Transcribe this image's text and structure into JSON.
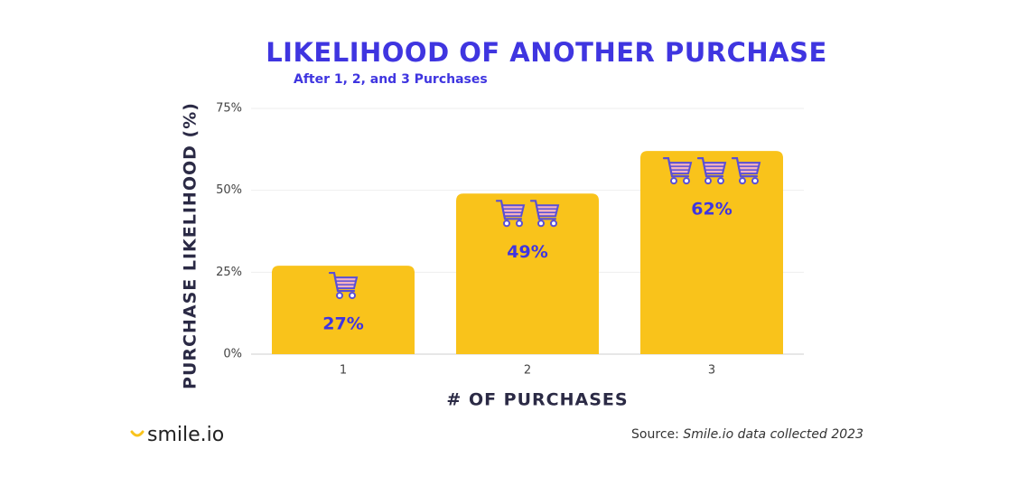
{
  "chart_data": {
    "type": "bar",
    "title": "LIKELIHOOD OF ANOTHER PURCHASE",
    "subtitle": "After 1, 2, and 3 Purchases",
    "x_label": "# OF PURCHASES",
    "y_label": "PURCHASE LIKELIHOOD (%)",
    "categories": [
      "1",
      "2",
      "3"
    ],
    "values": [
      27,
      49,
      62
    ],
    "value_labels": [
      "27%",
      "49%",
      "62%"
    ],
    "color": "#f9c31b",
    "ylim": [
      0,
      75
    ],
    "yticks": [
      {
        "value": 0,
        "label": "0%"
      },
      {
        "value": 25,
        "label": "25%"
      },
      {
        "value": 50,
        "label": "50%"
      },
      {
        "value": 75,
        "label": "75%"
      }
    ],
    "grid": true
  },
  "footer": {
    "logo": "smile.io",
    "source_prefix": "Source:",
    "source_text": "Smile.io data collected 2023"
  }
}
